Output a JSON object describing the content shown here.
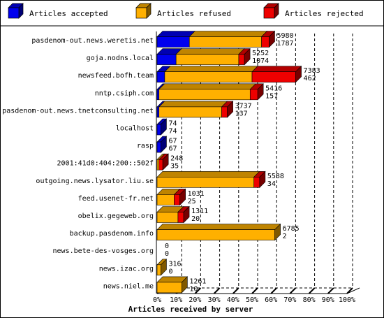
{
  "chart_data": {
    "type": "bar",
    "title": "",
    "xlabel": "Articles received by server",
    "ylabel": "",
    "stacked": true,
    "orientation": "horizontal",
    "x_scale": "percent",
    "xlim": [
      0,
      100
    ],
    "x_ticks": [
      "0%",
      "10%",
      "20%",
      "30%",
      "40%",
      "50%",
      "60%",
      "70%",
      "80%",
      "90%",
      "100%"
    ],
    "grid": "vertical dashed",
    "legend_position": "top",
    "colors": {
      "accepted": "#0000ee",
      "refused": "#ffb000",
      "rejected": "#ee0000"
    },
    "categories": [
      "pasdenom-out.news.weretis.net",
      "goja.nodns.local",
      "newsfeed.bofh.team",
      "nntp.csiph.com",
      "pasdenom-out.news.tnetconsulting.net",
      "localhost",
      "rasp",
      "2001:41d0:404:200::502f",
      "outgoing.news.lysator.liu.se",
      "feed.usenet-fr.net",
      "obelix.gegeweb.org",
      "backup.pasdenom.info",
      "news.bete-des-vosges.org",
      "news.izac.org",
      "news.niel.me"
    ],
    "series": [
      {
        "name": "Articles accepted",
        "values": [
          17,
          10,
          4,
          1,
          1,
          2,
          2,
          0,
          0,
          0,
          0,
          0,
          0,
          0,
          0
        ]
      },
      {
        "name": "Articles refused",
        "values": [
          38,
          33,
          46,
          48,
          33,
          0,
          0,
          1,
          51,
          9,
          11,
          62,
          0,
          2,
          13
        ]
      },
      {
        "name": "Articles rejected",
        "values": [
          4,
          3,
          23,
          4,
          3,
          0,
          0,
          2,
          3,
          3,
          3,
          0,
          0,
          0,
          0
        ]
      }
    ],
    "totals_label": [
      "5980",
      "5252",
      "7383",
      "5416",
      "3737",
      "74",
      "67",
      "248",
      "5588",
      "1031",
      "1311",
      "6785",
      "0",
      "316",
      "1261"
    ],
    "second_label": [
      "1787",
      "1074",
      "462",
      "157",
      "137",
      "74",
      "67",
      "35",
      "34",
      "25",
      "20",
      "2",
      "0",
      "0",
      "10"
    ]
  }
}
